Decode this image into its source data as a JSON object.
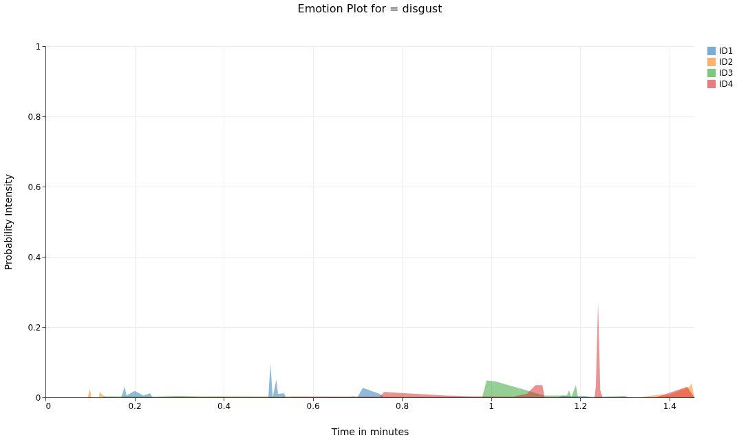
{
  "chart_data": {
    "type": "area",
    "title": "Emotion Plot for = disgust",
    "xlabel": "Time in minutes",
    "ylabel": "Probability Intensity",
    "xlim": [
      0,
      1.456
    ],
    "xticks": [
      0,
      0.2,
      0.4,
      0.6,
      0.8,
      1,
      1.2,
      1.4
    ],
    "ylim": [
      0,
      1
    ],
    "yticks": [
      0,
      0.2,
      0.4,
      0.6,
      0.8,
      1
    ],
    "grid": true,
    "legend": "top right",
    "series": [
      {
        "name": "ID1",
        "color": "#1f77b4",
        "x": [
          0.17,
          0.178,
          0.182,
          0.2,
          0.21,
          0.22,
          0.235,
          0.24,
          0.5,
          0.505,
          0.51,
          0.518,
          0.522,
          0.535,
          0.54,
          0.68,
          0.69,
          0.7,
          0.712,
          0.75,
          0.76,
          1.15,
          1.16,
          1.18,
          1.21,
          1.23
        ],
        "values": [
          0,
          0.03,
          0.005,
          0.018,
          0.012,
          0.005,
          0.012,
          0,
          0,
          0.095,
          0,
          0.05,
          0.01,
          0.012,
          0,
          0,
          0.003,
          0,
          0.027,
          0.01,
          0,
          0,
          0.005,
          0.003,
          0.004,
          0
        ]
      },
      {
        "name": "ID2",
        "color": "#ff7f0e",
        "x": [
          0.095,
          0.1,
          0.103,
          0.12,
          0.122,
          0.13,
          0.135,
          0.37,
          1.33,
          1.38,
          1.4,
          1.445,
          1.45,
          1.456
        ],
        "values": [
          0,
          0.025,
          0,
          0,
          0.015,
          0.005,
          0,
          0.003,
          0,
          0.008,
          0.008,
          0.03,
          0.04,
          0
        ]
      },
      {
        "name": "ID3",
        "color": "#2ca02c",
        "x": [
          0.13,
          0.25,
          0.3,
          0.35,
          0.4,
          0.98,
          0.99,
          1.01,
          1.12,
          1.17,
          1.175,
          1.18,
          1.19,
          1.195,
          1.3,
          1.31
        ],
        "values": [
          0.003,
          0.002,
          0.004,
          0.002,
          0.002,
          0,
          0.048,
          0.045,
          0.005,
          0.005,
          0.02,
          0,
          0.035,
          0,
          0.004,
          0
        ]
      },
      {
        "name": "ID4",
        "color": "#d62728",
        "x": [
          0.55,
          0.75,
          0.76,
          0.9,
          0.95,
          1.05,
          1.08,
          1.1,
          1.115,
          1.12,
          1.232,
          1.235,
          1.24,
          1.245,
          1.25,
          1.37,
          1.44,
          1.445,
          1.456
        ],
        "values": [
          0.002,
          0.002,
          0.015,
          0.005,
          0.003,
          0.002,
          0.01,
          0.035,
          0.035,
          0,
          0,
          0.03,
          0.27,
          0.02,
          0,
          0,
          0.03,
          0.02,
          0
        ]
      }
    ]
  }
}
